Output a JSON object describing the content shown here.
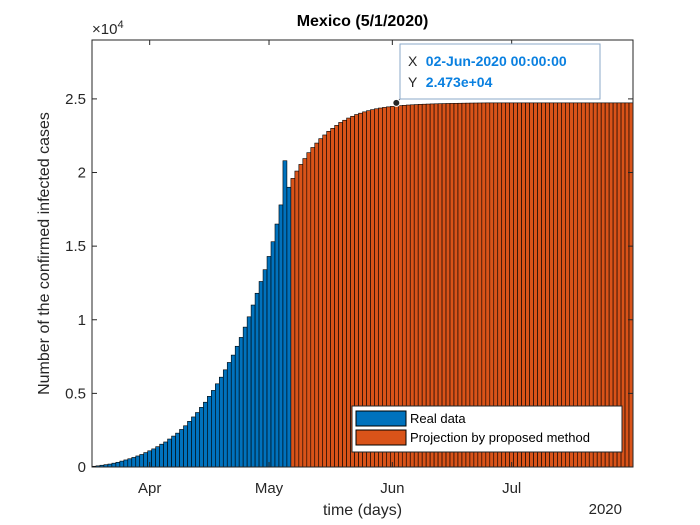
{
  "chart_data": {
    "type": "bar",
    "title": "Mexico (5/1/2020)",
    "xlabel": "time (days)",
    "ylabel": "Number of the confirmed infected cases",
    "y_exponent_label": "×10",
    "y_exponent_power": "4",
    "year_label": "2020",
    "ylim": [
      0,
      29000
    ],
    "yticks": [
      0,
      5000,
      10000,
      15000,
      20000,
      25000
    ],
    "ytick_labels": [
      "0",
      "0.5",
      "1",
      "1.5",
      "2",
      "2.5"
    ],
    "xlim_days": [
      -0.5,
      135.5
    ],
    "xtick_days": [
      14,
      44,
      75,
      105
    ],
    "xtick_labels": [
      "Apr",
      "May",
      "Jun",
      "Jul"
    ],
    "x_start_date": "2020-03-18",
    "grid": false,
    "legend_position": "bottom-right",
    "series": [
      {
        "name": "Real data",
        "color": "#0072BD",
        "values": [
          50,
          80,
          120,
          160,
          200,
          260,
          320,
          400,
          480,
          560,
          650,
          750,
          850,
          980,
          1100,
          1230,
          1380,
          1550,
          1700,
          1900,
          2100,
          2300,
          2550,
          2800,
          3100,
          3400,
          3700,
          4050,
          4400,
          4800,
          5200,
          5650,
          6100,
          6600,
          7100,
          7600,
          8200,
          8800,
          9500,
          10200,
          11000,
          11800,
          12600,
          13400,
          14300,
          15300,
          16500,
          17800,
          20800,
          19000
        ]
      },
      {
        "name": "Projection by proposed method",
        "color": "#D95319",
        "values": [
          19600,
          20100,
          20550,
          20950,
          21350,
          21700,
          22000,
          22300,
          22550,
          22800,
          23000,
          23200,
          23400,
          23550,
          23700,
          23820,
          23940,
          24030,
          24120,
          24200,
          24270,
          24330,
          24380,
          24420,
          24460,
          24490,
          24520,
          24545,
          24565,
          24585,
          24600,
          24615,
          24630,
          24640,
          24650,
          24660,
          24668,
          24676,
          24683,
          24690,
          24695,
          24700,
          24705,
          24710,
          24714,
          24718,
          24721,
          24724,
          24727,
          24730,
          24730,
          24730,
          24730,
          24730,
          24730,
          24730,
          24730,
          24730,
          24730,
          24730,
          24730,
          24730,
          24730,
          24730,
          24730,
          24730,
          24730,
          24730,
          24730,
          24730,
          24730,
          24730,
          24730,
          24730,
          24730,
          24730,
          24730,
          24730,
          24730,
          24730,
          24730,
          24730,
          24730,
          24730,
          24730,
          24730
        ]
      }
    ],
    "datatip": {
      "x_label": "X",
      "x_value": "02-Jun-2020 00:00:00",
      "y_label": "Y",
      "y_value": "2.473e+04",
      "x_day": 76,
      "y_value_num": 24730
    }
  }
}
